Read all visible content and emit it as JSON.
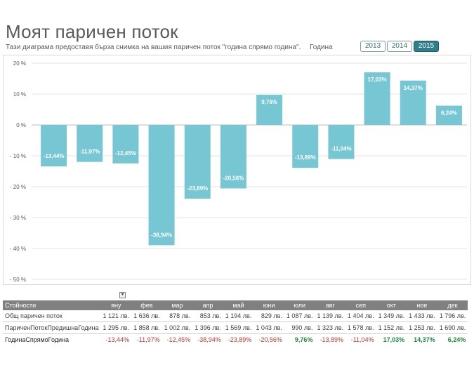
{
  "header": {
    "title": "Моят паричен поток",
    "subtitle": "Тази диаграма предоставя бърза снимка на вашия паричен поток \"година спрямо година\".",
    "year_label": "Година",
    "years": [
      "2013",
      "2014",
      "2015"
    ],
    "active_year": "2015"
  },
  "chart_data": {
    "type": "bar",
    "categories": [
      "яну",
      "фев",
      "мар",
      "апр",
      "май",
      "юни",
      "юли",
      "авг",
      "сеп",
      "окт",
      "ное",
      "дек"
    ],
    "values": [
      -13.44,
      -11.97,
      -12.45,
      -38.94,
      -23.89,
      -20.56,
      9.76,
      -13.89,
      -11.04,
      17.03,
      14.37,
      6.24
    ],
    "data_labels": [
      "-13,44%",
      "-11,97%",
      "-12,45%",
      "-38,94%",
      "-23,89%",
      "-20,56%",
      "9,76%",
      "-13,89%",
      "-11,04%",
      "17,03%",
      "14,37%",
      "6,24%"
    ],
    "ylim": [
      -50,
      20
    ],
    "yticks": [
      20,
      10,
      0,
      -10,
      -20,
      -30,
      -40,
      -50
    ],
    "ytick_labels": [
      "20 %",
      "10 %",
      "0 %",
      "- 10 %",
      "- 20 %",
      "- 30 %",
      "- 40 %",
      "- 50 %"
    ],
    "bar_color": "#76c7d3",
    "grid": true
  },
  "table": {
    "filter_icon": "chevron-down-icon",
    "header_label": "Стойности",
    "months": [
      "яну",
      "фев",
      "мар",
      "апр",
      "май",
      "юни",
      "юли",
      "авг",
      "сеп",
      "окт",
      "ное",
      "дек"
    ],
    "rows": [
      {
        "label": "Общ паричен поток",
        "values": [
          "1 121 лв.",
          "1 636 лв.",
          "878 лв.",
          "853 лв.",
          "1 194 лв.",
          "829 лв.",
          "1 087 лв.",
          "1 139 лв.",
          "1 404 лв.",
          "1 349 лв.",
          "1 433 лв.",
          "1 796 лв."
        ]
      },
      {
        "label": "ПариченПотокПредишнаГодина",
        "values": [
          "1 295 лв.",
          "1 858 лв.",
          "1 002 лв.",
          "1 396 лв.",
          "1 569 лв.",
          "1 043 лв.",
          "990 лв.",
          "1 323 лв.",
          "1 578 лв.",
          "1 152 лв.",
          "1 253 лв.",
          "1 690 лв."
        ]
      },
      {
        "label": "ГодинаСпрямоГодина",
        "values": [
          "-13,44%",
          "-11,97%",
          "-12,45%",
          "-38,94%",
          "-23,89%",
          "-20,56%",
          "9,76%",
          "-13,89%",
          "-11,04%",
          "17,03%",
          "14,37%",
          "6,24%"
        ]
      }
    ]
  },
  "colors": {
    "accent": "#2e7f89",
    "negative": "#c0392b",
    "positive": "#1e8b3a",
    "table_header": "#808080"
  }
}
